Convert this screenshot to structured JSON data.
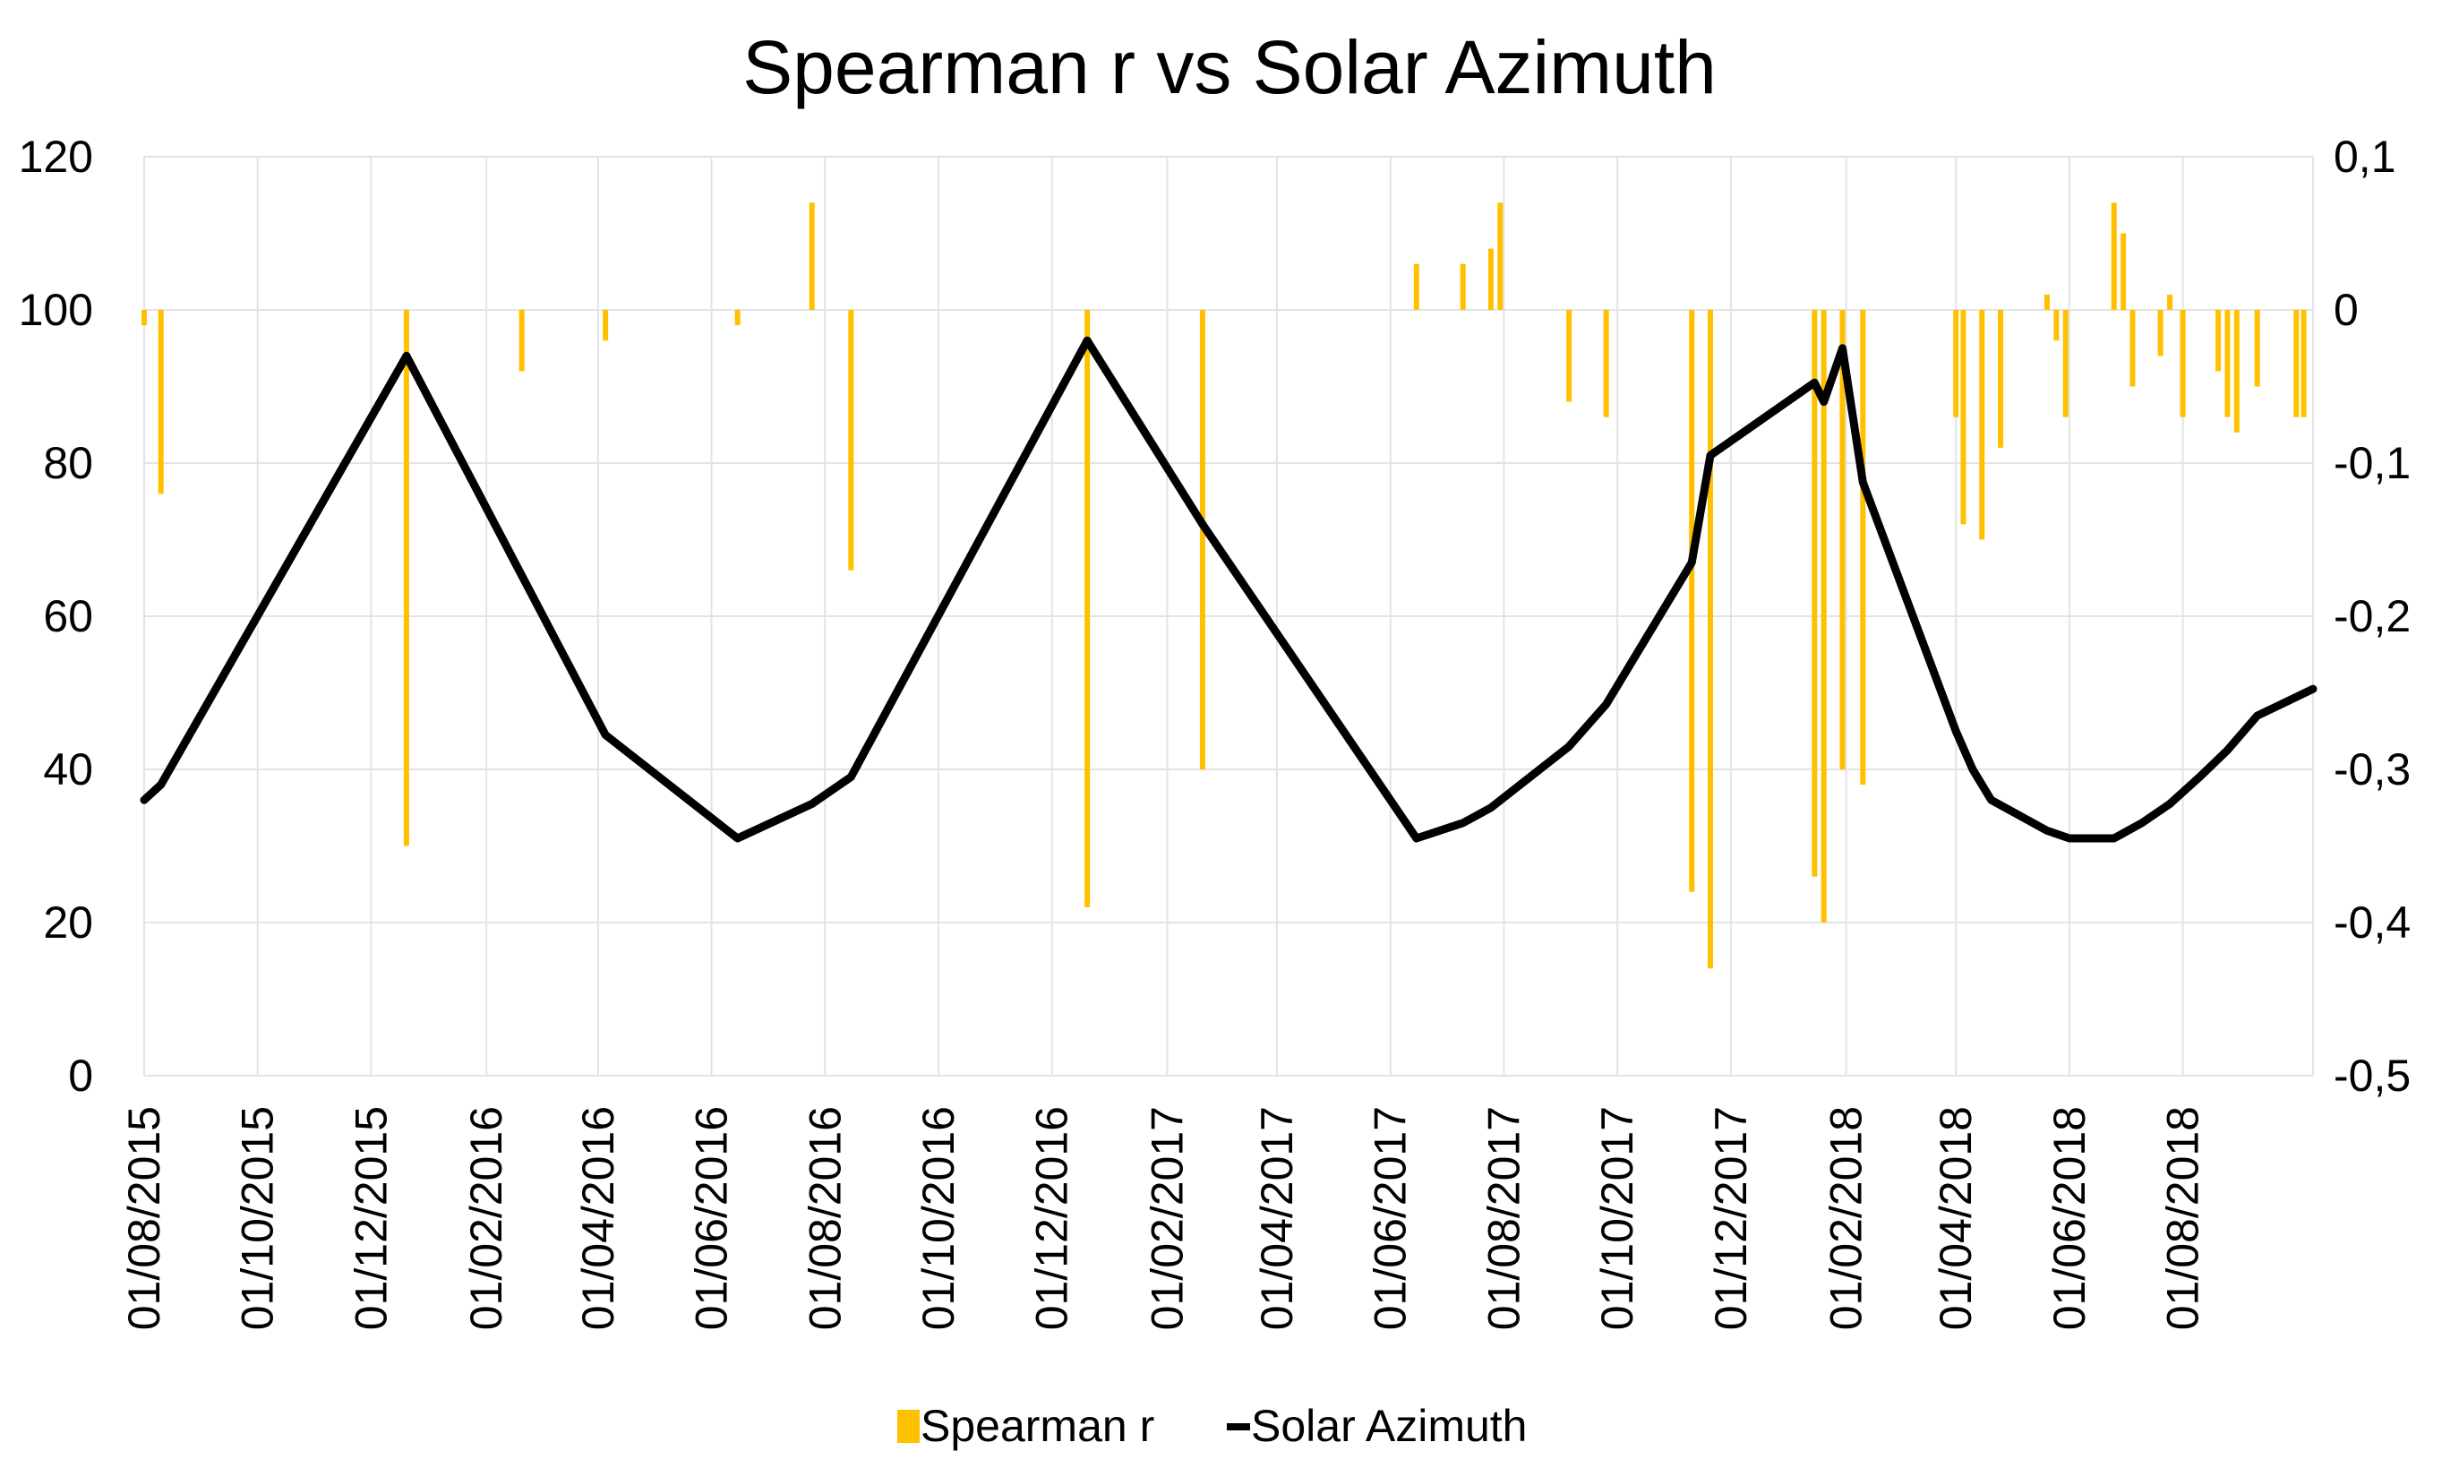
{
  "chart_data": {
    "type": "bar+line",
    "title": "Spearman r vs Solar Azimuth",
    "x_ticks": [
      "01/08/2015",
      "01/10/2015",
      "01/12/2015",
      "01/02/2016",
      "01/04/2016",
      "01/06/2016",
      "01/08/2016",
      "01/10/2016",
      "01/12/2016",
      "01/02/2017",
      "01/04/2017",
      "01/06/2017",
      "01/08/2017",
      "01/10/2017",
      "01/12/2017",
      "01/02/2018",
      "01/04/2018",
      "01/06/2018",
      "01/08/2018"
    ],
    "x_range": [
      "2015-08-01",
      "2018-10-10"
    ],
    "y_left": {
      "min": 0,
      "max": 120,
      "step": 20,
      "ticks": [
        "0",
        "20",
        "40",
        "60",
        "80",
        "100",
        "120"
      ]
    },
    "y_right": {
      "min": -0.5,
      "max": 0.1,
      "step": 0.1,
      "ticks": [
        "-0,5",
        "-0,4",
        "-0,3",
        "-0,2",
        "-0,1",
        "0",
        "0,1"
      ]
    },
    "grid": true,
    "legend_position": "bottom",
    "colors": {
      "bar": "#FFC000",
      "line": "#000000",
      "grid": "#e3e3e3"
    },
    "series": [
      {
        "name": "Spearman r",
        "type": "bar",
        "axis": "right",
        "points": [
          [
            "2015-08-01",
            -0.01
          ],
          [
            "2015-08-10",
            -0.12
          ],
          [
            "2015-12-20",
            -0.35
          ],
          [
            "2016-02-20",
            -0.04
          ],
          [
            "2016-04-05",
            -0.02
          ],
          [
            "2016-06-15",
            -0.01
          ],
          [
            "2016-07-25",
            0.07
          ],
          [
            "2016-08-15",
            -0.17
          ],
          [
            "2016-12-20",
            -0.39
          ],
          [
            "2017-02-20",
            -0.3
          ],
          [
            "2017-06-15",
            0.03
          ],
          [
            "2017-07-10",
            0.03
          ],
          [
            "2017-07-25",
            0.04
          ],
          [
            "2017-07-30",
            0.07
          ],
          [
            "2017-09-05",
            -0.06
          ],
          [
            "2017-09-25",
            -0.07
          ],
          [
            "2017-11-10",
            -0.38
          ],
          [
            "2017-11-20",
            -0.43
          ],
          [
            "2018-01-15",
            -0.37
          ],
          [
            "2018-01-20",
            -0.4
          ],
          [
            "2018-01-30",
            -0.3
          ],
          [
            "2018-02-10",
            -0.31
          ],
          [
            "2018-04-01",
            -0.07
          ],
          [
            "2018-04-05",
            -0.14
          ],
          [
            "2018-04-15",
            -0.15
          ],
          [
            "2018-04-25",
            -0.09
          ],
          [
            "2018-05-20",
            0.01
          ],
          [
            "2018-05-25",
            -0.02
          ],
          [
            "2018-05-30",
            -0.07
          ],
          [
            "2018-06-25",
            0.07
          ],
          [
            "2018-06-30",
            0.05
          ],
          [
            "2018-07-05",
            -0.05
          ],
          [
            "2018-07-20",
            -0.03
          ],
          [
            "2018-07-25",
            0.01
          ],
          [
            "2018-08-01",
            -0.07
          ],
          [
            "2018-08-20",
            -0.04
          ],
          [
            "2018-08-25",
            -0.07
          ],
          [
            "2018-08-30",
            -0.08
          ],
          [
            "2018-09-10",
            -0.05
          ],
          [
            "2018-10-01",
            -0.07
          ],
          [
            "2018-10-05",
            -0.07
          ]
        ]
      },
      {
        "name": "Solar Azimuth",
        "type": "line",
        "axis": "left",
        "points": [
          [
            "2015-08-01",
            36
          ],
          [
            "2015-08-10",
            38
          ],
          [
            "2015-12-20",
            94
          ],
          [
            "2016-04-05",
            44.5
          ],
          [
            "2016-06-15",
            31
          ],
          [
            "2016-07-25",
            35.5
          ],
          [
            "2016-08-15",
            39
          ],
          [
            "2016-12-20",
            96
          ],
          [
            "2017-02-20",
            72
          ],
          [
            "2017-06-15",
            31
          ],
          [
            "2017-07-10",
            33
          ],
          [
            "2017-07-25",
            35
          ],
          [
            "2017-09-05",
            43
          ],
          [
            "2017-09-25",
            48.5
          ],
          [
            "2017-11-10",
            67
          ],
          [
            "2017-11-20",
            81
          ],
          [
            "2018-01-15",
            90.5
          ],
          [
            "2018-01-20",
            88
          ],
          [
            "2018-01-30",
            95
          ],
          [
            "2018-02-10",
            77.5
          ],
          [
            "2018-04-01",
            45
          ],
          [
            "2018-04-10",
            40
          ],
          [
            "2018-04-20",
            36
          ],
          [
            "2018-05-20",
            32
          ],
          [
            "2018-06-01",
            31
          ],
          [
            "2018-06-25",
            31
          ],
          [
            "2018-07-10",
            33
          ],
          [
            "2018-07-25",
            35.5
          ],
          [
            "2018-08-10",
            39
          ],
          [
            "2018-08-25",
            42.5
          ],
          [
            "2018-09-10",
            47
          ],
          [
            "2018-10-10",
            50.5
          ]
        ]
      }
    ]
  }
}
